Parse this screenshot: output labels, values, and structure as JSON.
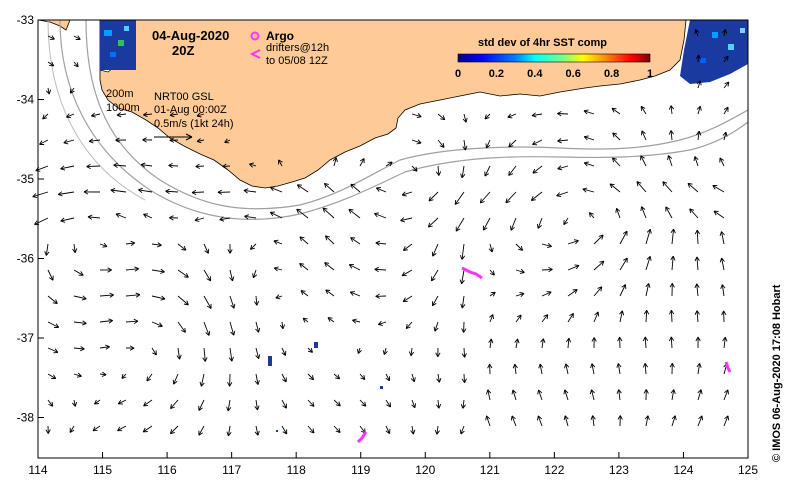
{
  "title": {
    "date": "04-Aug-2020",
    "time": "20Z"
  },
  "legend": {
    "argo_label": "Argo",
    "argo_color": "#ff33ff",
    "drifter_line1": "drifters@12h",
    "drifter_line2": "to 05/08 12Z",
    "drifter_color": "#ff33ff"
  },
  "info": {
    "contour_200": "200m",
    "contour_1000": "1000m",
    "product": "NRT00 GSL",
    "date": "01-Aug 00:00Z",
    "scale": "0.5m/s (1kt 24h)"
  },
  "colorbar": {
    "title": "std dev of 4hr SST comp",
    "ticks": [
      "0",
      "0.2",
      "0.4",
      "0.6",
      "0.8",
      "1"
    ],
    "colors": [
      "#00007f",
      "#0000ff",
      "#007fff",
      "#00ffff",
      "#7fff7f",
      "#ffff00",
      "#ff7f00",
      "#ff0000",
      "#7f0000"
    ]
  },
  "axes": {
    "x_ticks": [
      "114",
      "115",
      "116",
      "117",
      "118",
      "119",
      "120",
      "121",
      "122",
      "123",
      "124",
      "125"
    ],
    "y_ticks": [
      "-33",
      "-34",
      "-35",
      "-36",
      "-37",
      "-38"
    ]
  },
  "credit": "© IMOS 06-Aug-2020 17:08 Hobart",
  "colors": {
    "land": "#fecb98",
    "ocean": "#ffffff",
    "contour": "#a0a0a0",
    "arrow": "#000000"
  }
}
